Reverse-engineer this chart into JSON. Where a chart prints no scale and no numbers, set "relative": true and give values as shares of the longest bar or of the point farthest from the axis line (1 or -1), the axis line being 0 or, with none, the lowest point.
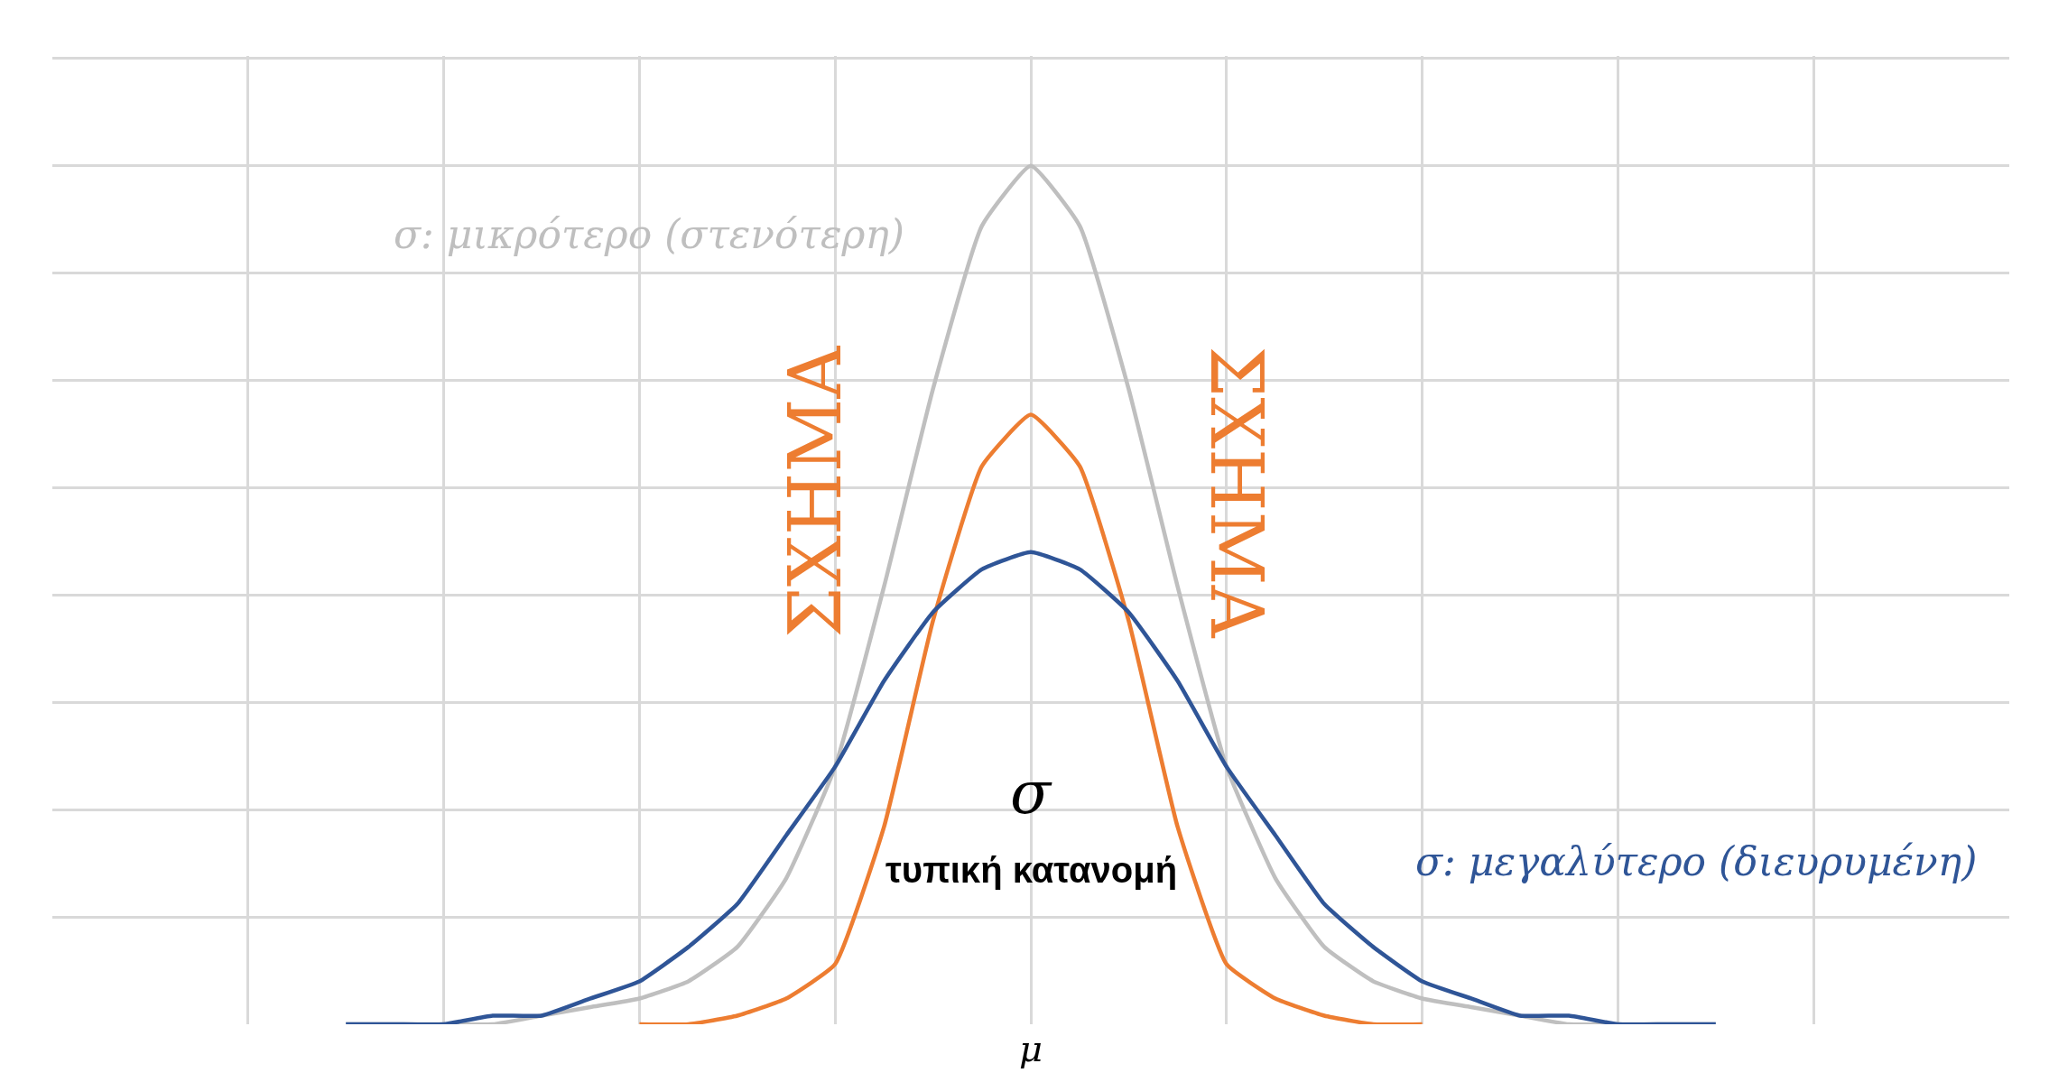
{
  "chart_data": {
    "type": "line",
    "relative": true,
    "grid": true,
    "marker": "none",
    "line_style": "solid",
    "categories": [
      null,
      null,
      null,
      null,
      null,
      null,
      null,
      null,
      null,
      null,
      null,
      null,
      null,
      null,
      null,
      null,
      null,
      null,
      null,
      null,
      null,
      null,
      null,
      null,
      null,
      null,
      null,
      null,
      null,
      null,
      null,
      null,
      null,
      null,
      null,
      null,
      null,
      null,
      null,
      null,
      null
    ],
    "series": [
      {
        "color": "#bfbfbf",
        "values": [
          null,
          null,
          null,
          null,
          null,
          null,
          0,
          0,
          0,
          0,
          0.01,
          0.02,
          0.03,
          0.05,
          0.09,
          0.17,
          0.3,
          0.51,
          0.74,
          0.93,
          1,
          0.93,
          0.74,
          0.51,
          0.3,
          0.17,
          0.09,
          0.05,
          0.03,
          0.02,
          0.01,
          0,
          0,
          0,
          0,
          null,
          null,
          null,
          null,
          null,
          null
        ]
      },
      {
        "color": "#ed7d31",
        "values": [
          null,
          null,
          null,
          null,
          null,
          null,
          null,
          null,
          null,
          null,
          null,
          null,
          0,
          0,
          0.01,
          0.03,
          0.07,
          0.23,
          0.47,
          0.65,
          0.71,
          0.65,
          0.47,
          0.23,
          0.07,
          0.03,
          0.01,
          0,
          0,
          null,
          null,
          null,
          null,
          null,
          null,
          null,
          null,
          null,
          null,
          null,
          null
        ]
      },
      {
        "color": "#2f5597",
        "values": [
          null,
          null,
          null,
          null,
          null,
          null,
          0,
          0,
          0,
          0.01,
          0.01,
          0.03,
          0.05,
          0.09,
          0.14,
          0.22,
          0.3,
          0.4,
          0.48,
          0.53,
          0.55,
          0.53,
          0.48,
          0.4,
          0.3,
          0.22,
          0.14,
          0.09,
          0.05,
          0.03,
          0.01,
          0.01,
          0,
          0,
          0,
          null,
          null,
          null,
          null,
          null,
          null
        ]
      }
    ],
    "annotations": [
      "σ: μικρότερο (στενότερη)",
      "ΣΧΗΜΑ",
      "ΣΧΗΜΑ",
      "σ",
      "τυπική κατανομή",
      "σ: μεγαλύτερο (διευρυμένη)",
      "μ"
    ]
  }
}
